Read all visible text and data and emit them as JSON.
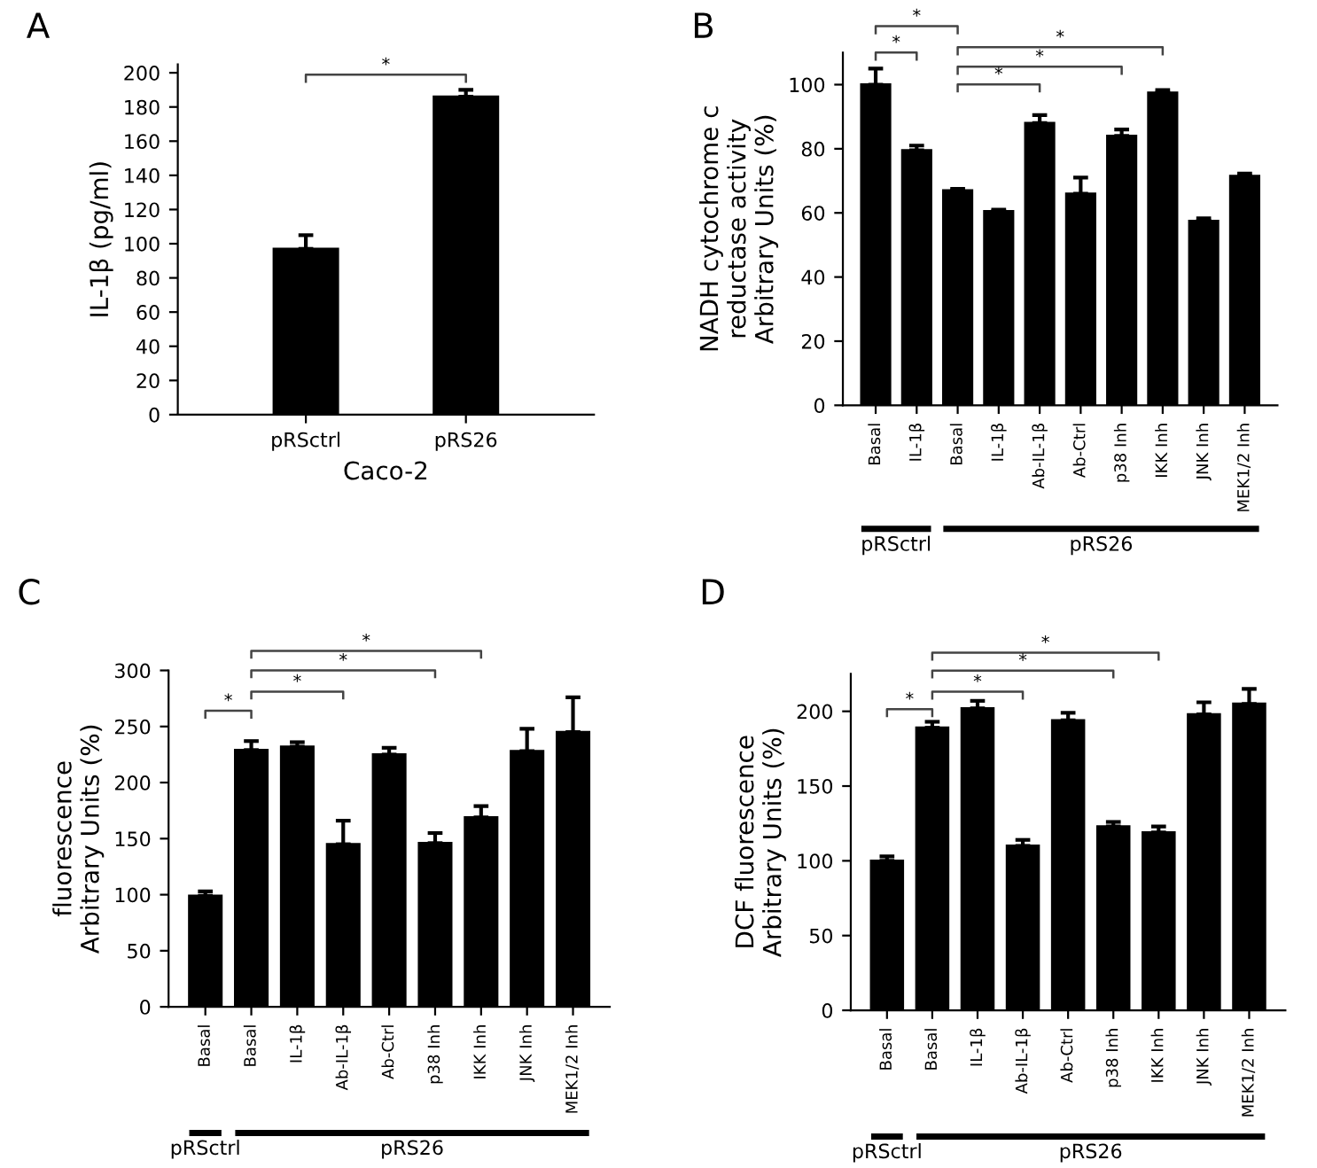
{
  "chart_data": [
    {
      "type": "bar",
      "title": "A",
      "xlabel": "Caco-2",
      "ylabel": "IL-1β (pg/ml)",
      "categories": [
        "pRSctrl",
        "pRS26"
      ],
      "values": [
        97,
        186
      ],
      "errors": [
        [
          97,
          105
        ],
        [
          186,
          190
        ]
      ],
      "color": "#000000",
      "ylim": [
        0,
        205
      ],
      "yticks": [
        0,
        20,
        40,
        60,
        80,
        100,
        120,
        140,
        160,
        180,
        200
      ],
      "grid": false,
      "annotations": [
        "*"
      ]
    },
    {
      "type": "bar",
      "title": "B",
      "ylabel": "NADH cytochrome c\nreductase activity\nArbitrary Units (%)",
      "categories": [
        "Basal",
        "IL-1β",
        "Basal",
        "IL-1β",
        "Ab-IL-1β",
        "Ab-Ctrl",
        "p38 Inh",
        "IKK Inh",
        "JNK Inh",
        "MEK1/2 Inh"
      ],
      "values": [
        100,
        79.5,
        67,
        60.5,
        88,
        66,
        84,
        97.5,
        57.5,
        71.5
      ],
      "errors": [
        [
          100,
          105
        ],
        [
          79.5,
          81
        ],
        [
          67,
          67.5
        ],
        [
          60.5,
          61
        ],
        [
          88,
          90.5
        ],
        [
          66,
          71
        ],
        [
          84,
          86
        ],
        [
          97.5,
          98.3
        ],
        [
          57.5,
          58.3
        ],
        [
          71.5,
          72.3
        ]
      ],
      "color": "#000000",
      "ylim": [
        0,
        110
      ],
      "yticks": [
        0,
        20,
        40,
        60,
        80,
        100
      ],
      "grid": false,
      "annotations": [
        "*",
        "*",
        "*",
        "*",
        "*",
        "pRSctrl",
        "pRS26"
      ]
    },
    {
      "type": "bar",
      "title": "C",
      "ylabel": "fluorescence\nArbitrary Units (%)",
      "categories": [
        "Basal",
        "Basal",
        "IL-1β",
        "Ab-IL-1β",
        "Ab-Ctrl",
        "p38 Inh",
        "IKK Inh",
        "JNK Inh",
        "MEK1/2 Inh"
      ],
      "values": [
        99,
        229,
        232,
        145,
        225,
        146,
        169,
        228,
        245
      ],
      "errors": [
        [
          99,
          103
        ],
        [
          229,
          237
        ],
        [
          232,
          236
        ],
        [
          145,
          166
        ],
        [
          225,
          231
        ],
        [
          146,
          155
        ],
        [
          169,
          179
        ],
        [
          228,
          248
        ],
        [
          245,
          276
        ]
      ],
      "color": "#000000",
      "ylim": [
        0,
        300
      ],
      "yticks": [
        0,
        50,
        100,
        150,
        200,
        250,
        300
      ],
      "grid": false,
      "annotations": [
        "*",
        "*",
        "*",
        "*",
        "pRSctrl",
        "pRS26"
      ]
    },
    {
      "type": "bar",
      "title": "D",
      "ylabel": "DCF fluorescence\nArbitrary Units (%)",
      "categories": [
        "Basal",
        "Basal",
        "IL-1β",
        "Ab-IL-1β",
        "Ab-Ctrl",
        "p38 Inh",
        "IKK Inh",
        "JNK Inh",
        "MEK1/2 Inh"
      ],
      "values": [
        100,
        189,
        202,
        110,
        194,
        123,
        119,
        198,
        205
      ],
      "errors": [
        [
          100,
          103
        ],
        [
          189,
          193
        ],
        [
          202,
          207
        ],
        [
          110,
          114
        ],
        [
          194,
          199
        ],
        [
          123,
          126
        ],
        [
          119,
          123
        ],
        [
          198,
          206
        ],
        [
          205,
          215
        ]
      ],
      "color": "#000000",
      "ylim": [
        0,
        225
      ],
      "yticks": [
        0,
        50,
        100,
        150,
        200
      ],
      "grid": false,
      "annotations": [
        "*",
        "*",
        "*",
        "*",
        "pRSctrl",
        "pRS26"
      ]
    }
  ]
}
